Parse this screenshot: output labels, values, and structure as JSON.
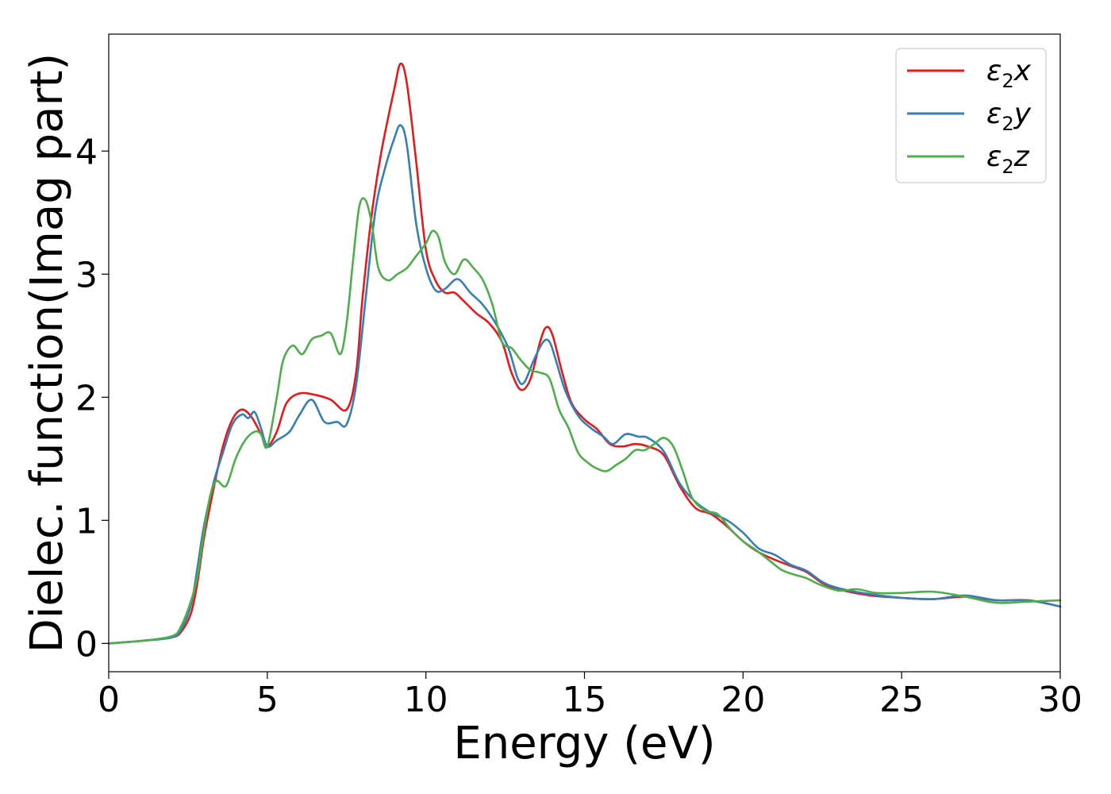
{
  "chart_data": {
    "type": "line",
    "title": "",
    "xlabel": "Energy (eV)",
    "ylabel": "Dielec. function(Imag part)",
    "xlim": [
      0,
      30
    ],
    "ylim": [
      -0.23,
      4.95
    ],
    "xticks": [
      0,
      5,
      10,
      15,
      20,
      25,
      30
    ],
    "yticks": [
      0,
      1,
      2,
      3,
      4
    ],
    "legend_position": "top-right",
    "grid": false,
    "series": [
      {
        "name": "ε₂x",
        "name_base": "ε",
        "name_sub": "2",
        "name_suffix": "x",
        "color": "#e41a1c",
        "x": [
          0,
          1,
          2,
          2.3,
          2.6,
          2.8,
          3.0,
          3.3,
          3.6,
          3.9,
          4.2,
          4.5,
          4.8,
          5.0,
          5.3,
          5.6,
          6.0,
          6.5,
          7.0,
          7.5,
          7.8,
          8.0,
          8.3,
          8.6,
          9.0,
          9.2,
          9.4,
          9.7,
          10.0,
          10.3,
          10.6,
          10.9,
          11.2,
          11.6,
          12.0,
          12.4,
          12.7,
          13.0,
          13.3,
          13.6,
          13.8,
          14.0,
          14.3,
          14.6,
          15.0,
          15.4,
          15.8,
          16.2,
          16.6,
          17.0,
          17.5,
          18.0,
          18.5,
          19.0,
          19.5,
          20.0,
          20.5,
          21.0,
          21.5,
          22.0,
          22.5,
          23.0,
          24.0,
          25.0,
          26.0,
          27.0,
          28.0,
          29.0,
          30.0
        ],
        "values": [
          0.0,
          0.02,
          0.05,
          0.1,
          0.25,
          0.5,
          0.85,
          1.25,
          1.6,
          1.82,
          1.9,
          1.84,
          1.7,
          1.6,
          1.72,
          1.95,
          2.03,
          2.02,
          1.98,
          1.9,
          2.2,
          2.8,
          3.5,
          4.0,
          4.5,
          4.71,
          4.55,
          3.9,
          3.2,
          2.95,
          2.85,
          2.85,
          2.78,
          2.68,
          2.6,
          2.45,
          2.2,
          2.06,
          2.15,
          2.45,
          2.57,
          2.5,
          2.2,
          1.95,
          1.82,
          1.74,
          1.62,
          1.6,
          1.62,
          1.6,
          1.53,
          1.28,
          1.1,
          1.05,
          0.95,
          0.83,
          0.74,
          0.68,
          0.63,
          0.58,
          0.49,
          0.44,
          0.39,
          0.37,
          0.36,
          0.38,
          0.35,
          0.35,
          0.3
        ]
      },
      {
        "name": "ε₂y",
        "name_base": "ε",
        "name_sub": "2",
        "name_suffix": "y",
        "color": "#377eb8",
        "x": [
          0,
          1,
          2,
          2.3,
          2.6,
          2.8,
          3.0,
          3.3,
          3.6,
          3.9,
          4.2,
          4.4,
          4.6,
          4.8,
          5.0,
          5.3,
          5.7,
          6.0,
          6.4,
          6.8,
          7.2,
          7.5,
          7.8,
          8.1,
          8.4,
          8.7,
          9.0,
          9.2,
          9.4,
          9.7,
          10.0,
          10.3,
          10.6,
          11.0,
          11.4,
          11.8,
          12.2,
          12.6,
          12.9,
          13.1,
          13.4,
          13.7,
          13.9,
          14.1,
          14.4,
          14.8,
          15.2,
          15.6,
          15.9,
          16.3,
          16.7,
          17.0,
          17.5,
          18.0,
          18.5,
          19.0,
          19.5,
          20.0,
          20.5,
          21.0,
          21.5,
          22.0,
          22.5,
          23.0,
          24.0,
          25.0,
          26.0,
          27.0,
          28.0,
          29.0,
          30.0
        ],
        "values": [
          0.0,
          0.02,
          0.05,
          0.12,
          0.32,
          0.62,
          0.95,
          1.3,
          1.55,
          1.78,
          1.86,
          1.83,
          1.88,
          1.75,
          1.6,
          1.65,
          1.72,
          1.85,
          1.98,
          1.8,
          1.8,
          1.78,
          2.1,
          2.8,
          3.5,
          3.85,
          4.1,
          4.21,
          4.05,
          3.4,
          3.05,
          2.87,
          2.88,
          2.96,
          2.85,
          2.75,
          2.6,
          2.4,
          2.15,
          2.12,
          2.3,
          2.45,
          2.45,
          2.3,
          2.05,
          1.85,
          1.75,
          1.68,
          1.62,
          1.7,
          1.68,
          1.67,
          1.56,
          1.3,
          1.15,
          1.06,
          1.0,
          0.9,
          0.77,
          0.72,
          0.64,
          0.59,
          0.5,
          0.45,
          0.4,
          0.37,
          0.36,
          0.39,
          0.35,
          0.35,
          0.3
        ]
      },
      {
        "name": "ε₂z",
        "name_base": "ε",
        "name_sub": "2",
        "name_suffix": "z",
        "color": "#4daf4a",
        "x": [
          0,
          1,
          2,
          2.3,
          2.6,
          2.8,
          3.0,
          3.2,
          3.4,
          3.7,
          4.0,
          4.3,
          4.6,
          4.8,
          5.0,
          5.3,
          5.5,
          5.8,
          6.1,
          6.4,
          6.7,
          7.0,
          7.3,
          7.5,
          7.7,
          7.9,
          8.1,
          8.3,
          8.5,
          8.8,
          9.1,
          9.4,
          9.7,
          10.0,
          10.2,
          10.4,
          10.6,
          10.9,
          11.2,
          11.5,
          11.8,
          12.1,
          12.4,
          12.7,
          13.0,
          13.3,
          13.6,
          13.9,
          14.2,
          14.5,
          14.8,
          15.1,
          15.4,
          15.7,
          16.0,
          16.3,
          16.6,
          16.9,
          17.2,
          17.5,
          17.8,
          18.1,
          18.4,
          18.8,
          19.2,
          19.6,
          20.0,
          20.4,
          20.8,
          21.2,
          21.6,
          22.0,
          22.4,
          23.0,
          23.6,
          24.2,
          25.0,
          26.0,
          27.0,
          28.0,
          29.0,
          30.0
        ],
        "values": [
          0.0,
          0.02,
          0.06,
          0.15,
          0.35,
          0.55,
          0.9,
          1.2,
          1.32,
          1.28,
          1.5,
          1.65,
          1.72,
          1.7,
          1.6,
          2.0,
          2.3,
          2.42,
          2.35,
          2.47,
          2.5,
          2.52,
          2.35,
          2.6,
          3.1,
          3.55,
          3.6,
          3.4,
          3.05,
          2.95,
          3.0,
          3.05,
          3.15,
          3.25,
          3.35,
          3.3,
          3.1,
          3.0,
          3.12,
          3.05,
          2.95,
          2.75,
          2.45,
          2.4,
          2.3,
          2.22,
          2.2,
          2.15,
          1.9,
          1.75,
          1.55,
          1.47,
          1.42,
          1.4,
          1.45,
          1.5,
          1.57,
          1.57,
          1.62,
          1.67,
          1.6,
          1.4,
          1.18,
          1.08,
          1.05,
          0.93,
          0.83,
          0.76,
          0.68,
          0.6,
          0.56,
          0.53,
          0.48,
          0.43,
          0.44,
          0.41,
          0.41,
          0.42,
          0.38,
          0.33,
          0.34,
          0.35
        ]
      }
    ]
  }
}
